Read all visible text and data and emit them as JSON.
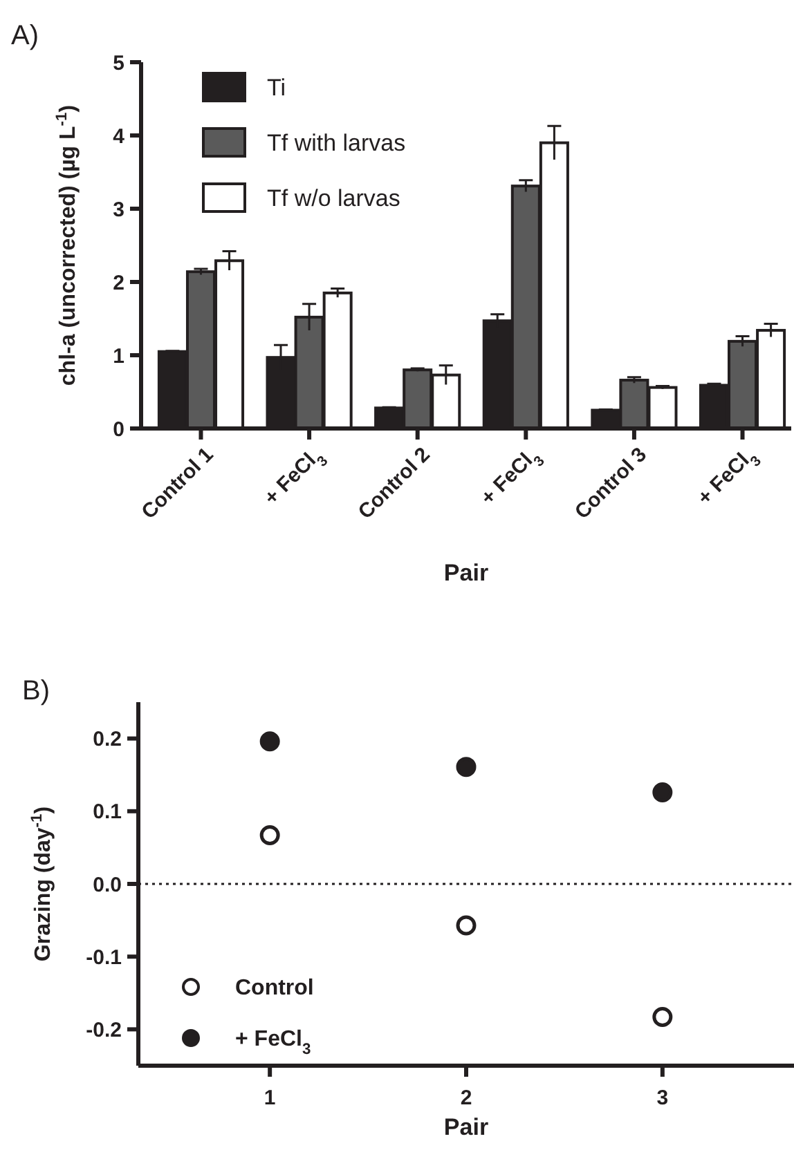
{
  "chart_data": [
    {
      "type": "bar",
      "title": "A)",
      "xlabel": "Pair",
      "ylabel": "chl-a (uncorrected) (µg L$^{-1}$)",
      "categories": [
        "Control 1",
        "+ FeCl$_{3}$",
        "Control 2",
        "+ FeCl$_{3}$",
        "Control 3",
        "+ FeCl$_{3}$"
      ],
      "series": [
        {
          "name": "Ti",
          "color": "#231f20",
          "values": [
            1.05,
            0.97,
            0.28,
            1.47,
            0.25,
            0.59
          ],
          "errors": [
            0.01,
            0.17,
            0.01,
            0.09,
            0.01,
            0.02
          ]
        },
        {
          "name": "Tf with larvas",
          "color": "#5a5a5a",
          "values": [
            2.14,
            1.52,
            0.8,
            3.31,
            0.66,
            1.19
          ],
          "errors": [
            0.04,
            0.18,
            0.02,
            0.08,
            0.04,
            0.07
          ]
        },
        {
          "name": "Tf w/o larvas",
          "color": "#ffffff",
          "values": [
            2.29,
            1.85,
            0.73,
            3.9,
            0.56,
            1.34
          ],
          "errors": [
            0.13,
            0.06,
            0.13,
            0.23,
            0.02,
            0.09
          ]
        }
      ],
      "ylim": [
        0,
        5
      ],
      "yticks": [
        0,
        1,
        2,
        3,
        4,
        5
      ],
      "grid": false,
      "legend": "top left"
    },
    {
      "type": "scatter",
      "title": "B)",
      "xlabel": "Pair",
      "ylabel": "Grazing (day$^{-1}$)",
      "series": [
        {
          "name": "Control",
          "color": "#ffffff",
          "x": [
            1,
            2,
            3
          ],
          "values": [
            0.067,
            -0.057,
            -0.183
          ]
        },
        {
          "name": "+ FeCl$_{3}$",
          "color": "#231f20",
          "x": [
            1,
            2,
            3
          ],
          "values": [
            0.196,
            0.161,
            0.126
          ]
        }
      ],
      "xlim": [
        0.33,
        3.67
      ],
      "xticks": [
        1,
        2,
        3
      ],
      "ylim": [
        -0.25,
        0.25
      ],
      "yticks": [
        {
          "value": -0.2,
          "label": "-0.2"
        },
        {
          "value": -0.1,
          "label": "-0.1"
        },
        {
          "value": 0,
          "label": "0.0"
        },
        0.1,
        0.2
      ],
      "ref_lines": [
        {
          "axis": "y",
          "value": 0,
          "line_style": "dotted"
        }
      ],
      "marker": "circle",
      "grid": false,
      "legend": "bottom left"
    }
  ]
}
